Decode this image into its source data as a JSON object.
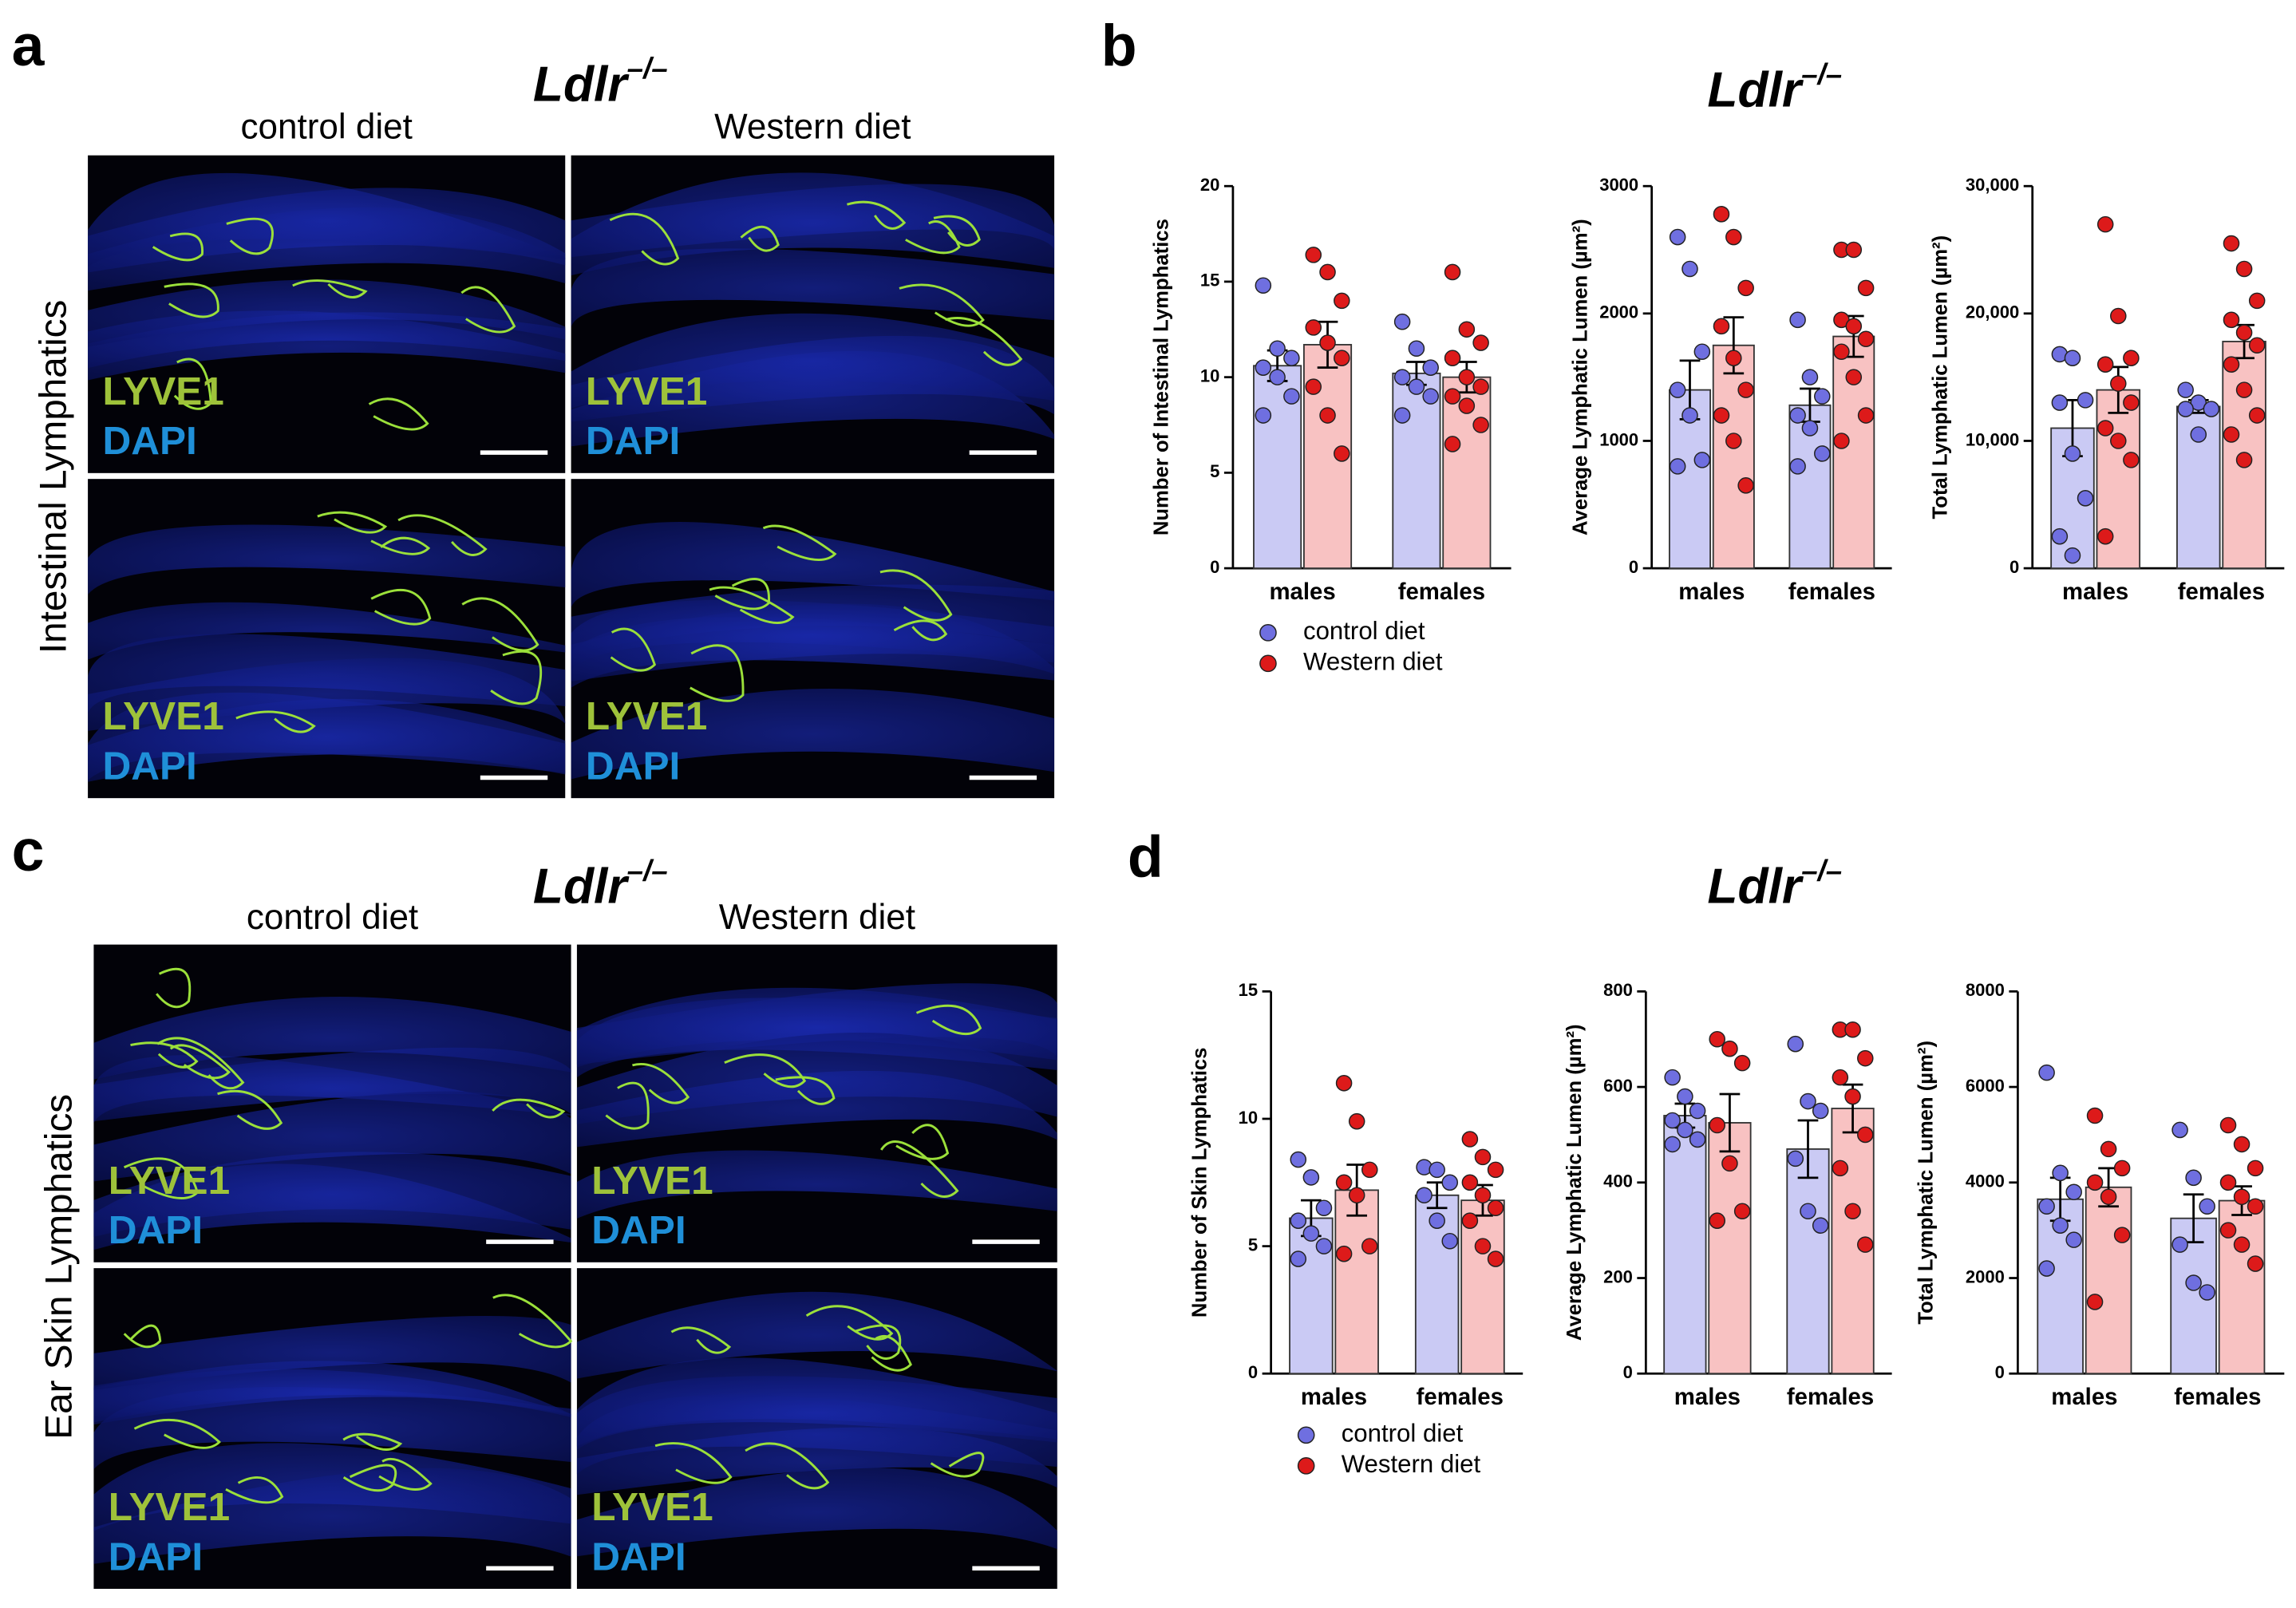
{
  "panels": {
    "a": {
      "label": "a",
      "genotype": "Ldlr",
      "genotype_sup": "–/–",
      "columns": [
        "control diet",
        "Western diet"
      ],
      "row_label": "Intestinal Lymphatics",
      "stains": [
        "LYVE1",
        "DAPI"
      ]
    },
    "b": {
      "label": "b",
      "genotype": "Ldlr",
      "genotype_sup": "–/–"
    },
    "c": {
      "label": "c",
      "genotype": "Ldlr",
      "genotype_sup": "–/–",
      "columns": [
        "control diet",
        "Western diet"
      ],
      "row_label": "Ear Skin Lymphatics",
      "stains": [
        "LYVE1",
        "DAPI"
      ]
    },
    "d": {
      "label": "d",
      "genotype": "Ldlr",
      "genotype_sup": "–/–"
    }
  },
  "chart_data": [
    {
      "type": "bar",
      "ylabel": "Number of Intestinal Lymphatics",
      "categories": [
        "males",
        "females"
      ],
      "legend": "below",
      "ylim": [
        0,
        20
      ],
      "yticks": [
        0,
        5,
        10,
        15,
        20
      ],
      "series": [
        {
          "name": "control diet",
          "color": "#6f6fe0",
          "bar_color": "#cacaf4",
          "values": [
            10.6,
            10.2
          ],
          "errors": [
            0.8,
            0.6
          ],
          "points": [
            [
              14.8,
              11.5,
              11,
              10.5,
              10,
              9,
              8
            ],
            [
              12.9,
              11.5,
              10.5,
              10,
              9.5,
              9,
              8
            ]
          ]
        },
        {
          "name": "Western diet",
          "color": "#dd1a1a",
          "bar_color": "#f8c2c2",
          "values": [
            11.7,
            10.0
          ],
          "errors": [
            1.2,
            0.8
          ],
          "points": [
            [
              16.4,
              15.5,
              14,
              12.6,
              11.8,
              11,
              9.5,
              8,
              6
            ],
            [
              15.5,
              12.5,
              11.8,
              11,
              10,
              9.5,
              9,
              8.5,
              7.5,
              6.5
            ]
          ]
        }
      ]
    },
    {
      "type": "bar",
      "ylabel": "Average Lymphatic Lumen (µm²)",
      "categories": [
        "males",
        "females"
      ],
      "ylim": [
        0,
        3000
      ],
      "yticks": [
        0,
        1000,
        2000,
        3000
      ],
      "series": [
        {
          "color": "#6f6fe0",
          "bar_color": "#cacaf4",
          "values": [
            1400,
            1280
          ],
          "errors": [
            230,
            130
          ],
          "points": [
            [
              2600,
              2350,
              1700,
              1400,
              1200,
              850,
              800
            ],
            [
              1950,
              1500,
              1350,
              1200,
              1100,
              900,
              800
            ]
          ]
        },
        {
          "color": "#dd1a1a",
          "bar_color": "#f8c2c2",
          "values": [
            1750,
            1820
          ],
          "errors": [
            220,
            160
          ],
          "points": [
            [
              2780,
              2600,
              2200,
              1900,
              1650,
              1400,
              1200,
              1000,
              650
            ],
            [
              2500,
              2500,
              2200,
              1950,
              1900,
              1800,
              1700,
              1500,
              1200,
              1000
            ]
          ]
        }
      ]
    },
    {
      "type": "bar",
      "ylabel": "Total Lymphatic Lumen (µm²)",
      "categories": [
        "males",
        "females"
      ],
      "ylim": [
        0,
        30000
      ],
      "yticks": [
        0,
        {
          "value": 10000,
          "label": "10,000"
        },
        {
          "value": 20000,
          "label": "20,000"
        },
        {
          "value": 30000,
          "label": "30,000"
        }
      ],
      "series": [
        {
          "color": "#6f6fe0",
          "bar_color": "#cacaf4",
          "values": [
            11000,
            12700
          ],
          "errors": [
            2200,
            500
          ],
          "points": [
            [
              16800,
              16500,
              13200,
              13000,
              9000,
              5500,
              2500,
              1000
            ],
            [
              14000,
              13000,
              12500,
              12500,
              10500
            ]
          ]
        },
        {
          "color": "#dd1a1a",
          "bar_color": "#f8c2c2",
          "values": [
            14000,
            17800
          ],
          "errors": [
            1800,
            1300
          ],
          "points": [
            [
              27000,
              19800,
              16500,
              16000,
              14500,
              13000,
              11000,
              10000,
              8500,
              2500
            ],
            [
              25500,
              23500,
              21000,
              19500,
              18500,
              17500,
              16000,
              14000,
              12000,
              10500,
              8500
            ]
          ]
        }
      ]
    },
    {
      "type": "bar",
      "ylabel": "Number of Skin Lymphatics",
      "categories": [
        "males",
        "females"
      ],
      "legend": "below",
      "ylim": [
        0,
        15
      ],
      "yticks": [
        0,
        5,
        10,
        15
      ],
      "series": [
        {
          "name": "control diet",
          "color": "#6f6fe0",
          "bar_color": "#cacaf4",
          "values": [
            6.1,
            7.0
          ],
          "errors": [
            0.7,
            0.5
          ],
          "points": [
            [
              8.4,
              7.7,
              6.5,
              6,
              5.5,
              5,
              4.5
            ],
            [
              8.1,
              8,
              7.5,
              7,
              6,
              5.2
            ]
          ]
        },
        {
          "name": "Western diet",
          "color": "#dd1a1a",
          "bar_color": "#f8c2c2",
          "values": [
            7.2,
            6.8
          ],
          "errors": [
            1.0,
            0.6
          ],
          "points": [
            [
              11.4,
              9.9,
              8,
              7.5,
              7,
              5,
              4.7
            ],
            [
              9.2,
              8.5,
              8,
              7.5,
              7,
              6.5,
              6,
              5,
              4.5
            ]
          ]
        }
      ]
    },
    {
      "type": "bar",
      "ylabel": "Average Lymphatic Lumen (µm²)",
      "categories": [
        "males",
        "females"
      ],
      "ylim": [
        0,
        800
      ],
      "yticks": [
        0,
        200,
        400,
        600,
        800
      ],
      "series": [
        {
          "color": "#6f6fe0",
          "bar_color": "#cacaf4",
          "values": [
            540,
            470
          ],
          "errors": [
            25,
            60
          ],
          "points": [
            [
              620,
              580,
              550,
              530,
              510,
              490,
              480
            ],
            [
              690,
              570,
              550,
              450,
              340,
              310
            ]
          ]
        },
        {
          "color": "#dd1a1a",
          "bar_color": "#f8c2c2",
          "values": [
            525,
            555
          ],
          "errors": [
            60,
            50
          ],
          "points": [
            [
              700,
              680,
              650,
              520,
              440,
              340,
              320
            ],
            [
              720,
              720,
              660,
              620,
              580,
              500,
              430,
              340,
              270
            ]
          ]
        }
      ]
    },
    {
      "type": "bar",
      "ylabel": "Total Lymphatic Lumen (µm²)",
      "categories": [
        "males",
        "females"
      ],
      "ylim": [
        0,
        8000
      ],
      "yticks": [
        0,
        2000,
        4000,
        6000,
        8000
      ],
      "series": [
        {
          "color": "#6f6fe0",
          "bar_color": "#cacaf4",
          "values": [
            3650,
            3250
          ],
          "errors": [
            450,
            500
          ],
          "points": [
            [
              6300,
              4200,
              3800,
              3500,
              3100,
              2800,
              2200
            ],
            [
              5100,
              4100,
              3500,
              2700,
              1900,
              1700
            ]
          ]
        },
        {
          "color": "#dd1a1a",
          "bar_color": "#f8c2c2",
          "values": [
            3900,
            3620
          ],
          "errors": [
            400,
            300
          ],
          "points": [
            [
              5400,
              4700,
              4300,
              4000,
              3700,
              2900,
              1500
            ],
            [
              5200,
              4800,
              4300,
              4000,
              3700,
              3500,
              3000,
              2700,
              2300
            ]
          ]
        }
      ]
    }
  ]
}
